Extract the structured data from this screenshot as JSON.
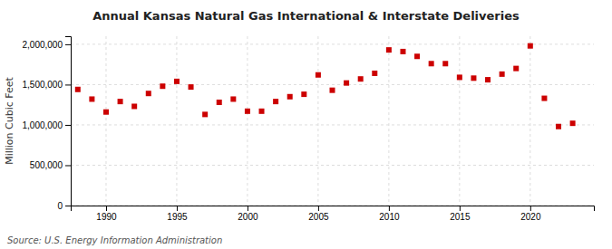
{
  "chart_data": {
    "type": "scatter",
    "title": "Annual Kansas Natural Gas International & Interstate Deliveries",
    "ylabel": "Million Cubic Feet",
    "source": "Source: U.S. Energy Information Administration",
    "color": "#cc0000",
    "marker": "square",
    "grid": true,
    "x": [
      1988,
      1989,
      1990,
      1991,
      1992,
      1993,
      1994,
      1995,
      1996,
      1997,
      1998,
      1999,
      2000,
      2001,
      2002,
      2003,
      2004,
      2005,
      2006,
      2007,
      2008,
      2009,
      2010,
      2011,
      2012,
      2013,
      2014,
      2015,
      2016,
      2017,
      2018,
      2019,
      2020,
      2021,
      2022,
      2023
    ],
    "values": [
      1440000,
      1320000,
      1160000,
      1290000,
      1230000,
      1390000,
      1480000,
      1540000,
      1470000,
      1130000,
      1280000,
      1320000,
      1170000,
      1170000,
      1290000,
      1350000,
      1380000,
      1620000,
      1430000,
      1520000,
      1570000,
      1640000,
      1930000,
      1910000,
      1850000,
      1760000,
      1760000,
      1590000,
      1580000,
      1560000,
      1630000,
      1700000,
      1980000,
      1330000,
      980000,
      1020000
    ],
    "xlim": [
      1987.5,
      2024.5
    ],
    "ylim": [
      0,
      2100000
    ],
    "xticks": [
      1990,
      1995,
      2000,
      2005,
      2010,
      2015,
      2020
    ],
    "yticks": [
      0,
      {
        "value": 500000,
        "label": "500,000"
      },
      {
        "value": 1000000,
        "label": "1,000,000"
      },
      {
        "value": 1500000,
        "label": "1,500,000"
      },
      {
        "value": 2000000,
        "label": "2,000,000"
      }
    ]
  }
}
